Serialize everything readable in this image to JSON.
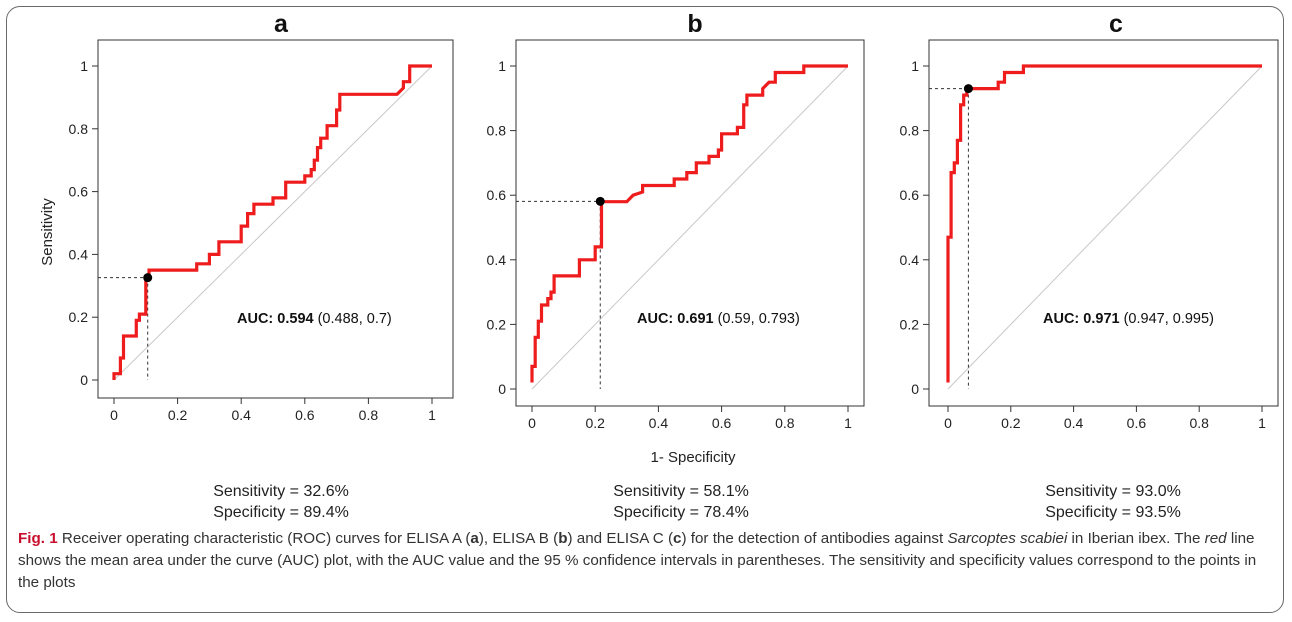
{
  "figure": {
    "shared_xlabel": "1- Specificity",
    "shared_ylabel": "Sensitivity",
    "tick_labels": [
      "0",
      "0.2",
      "0.4",
      "0.6",
      "0.8",
      "1"
    ],
    "colors": {
      "roc_curve": "#ee1c1c",
      "diagonal": "#c8c8c8",
      "guide": "#333333",
      "point": "#000000"
    }
  },
  "chart_data": [
    {
      "type": "line",
      "panel": "a",
      "xlabel": "1- Specificity",
      "ylabel": "Sensitivity",
      "xlim": [
        0,
        1
      ],
      "ylim": [
        0,
        1
      ],
      "auc_label": "AUC:",
      "auc_value": "0.594",
      "auc_ci": "(0.488, 0.7)",
      "point": {
        "x": 0.106,
        "y": 0.326
      },
      "sensitivity_text": "Sensitivity = 32.6%",
      "specificity_text": "Specificity = 89.4%",
      "series": [
        {
          "x": [
            0.0,
            0.0,
            0.02,
            0.02,
            0.03,
            0.03,
            0.04,
            0.04,
            0.07,
            0.07,
            0.08,
            0.08,
            0.1,
            0.1,
            0.11,
            0.11,
            0.13,
            0.13,
            0.16,
            0.16,
            0.26,
            0.26,
            0.3,
            0.3,
            0.33,
            0.33,
            0.4,
            0.4,
            0.42,
            0.42,
            0.44,
            0.44,
            0.5,
            0.5,
            0.54,
            0.54,
            0.6,
            0.6,
            0.62,
            0.62,
            0.63,
            0.63,
            0.64,
            0.64,
            0.65,
            0.65,
            0.67,
            0.67,
            0.7,
            0.7,
            0.71,
            0.71,
            0.89,
            0.91,
            0.91,
            0.93,
            0.93,
            1.0
          ],
          "y": [
            0.0,
            0.02,
            0.02,
            0.07,
            0.07,
            0.14,
            0.14,
            0.14,
            0.14,
            0.19,
            0.19,
            0.21,
            0.21,
            0.33,
            0.33,
            0.35,
            0.35,
            0.35,
            0.35,
            0.35,
            0.35,
            0.37,
            0.37,
            0.4,
            0.4,
            0.44,
            0.44,
            0.49,
            0.49,
            0.53,
            0.53,
            0.56,
            0.56,
            0.58,
            0.58,
            0.63,
            0.63,
            0.65,
            0.65,
            0.67,
            0.67,
            0.7,
            0.7,
            0.74,
            0.74,
            0.77,
            0.77,
            0.81,
            0.81,
            0.86,
            0.86,
            0.91,
            0.91,
            0.93,
            0.95,
            0.95,
            1.0,
            1.0
          ]
        }
      ]
    },
    {
      "type": "line",
      "panel": "b",
      "xlabel": "1- Specificity",
      "ylabel": "Sensitivity",
      "xlim": [
        0,
        1
      ],
      "ylim": [
        0,
        1
      ],
      "auc_label": "AUC:",
      "auc_value": "0.691",
      "auc_ci": "(0.59, 0.793)",
      "point": {
        "x": 0.216,
        "y": 0.581
      },
      "sensitivity_text": "Sensitivity = 58.1%",
      "specificity_text": "Specificity = 78.4%",
      "series": [
        {
          "x": [
            0.0,
            0.0,
            0.01,
            0.01,
            0.02,
            0.02,
            0.03,
            0.03,
            0.05,
            0.05,
            0.06,
            0.06,
            0.07,
            0.07,
            0.15,
            0.15,
            0.2,
            0.2,
            0.22,
            0.22,
            0.3,
            0.32,
            0.35,
            0.35,
            0.45,
            0.45,
            0.49,
            0.49,
            0.52,
            0.52,
            0.56,
            0.56,
            0.59,
            0.59,
            0.6,
            0.6,
            0.65,
            0.65,
            0.67,
            0.67,
            0.68,
            0.68,
            0.73,
            0.73,
            0.75,
            0.77,
            0.77,
            0.79,
            0.79,
            0.86,
            0.86,
            1.0
          ],
          "y": [
            0.02,
            0.07,
            0.07,
            0.16,
            0.16,
            0.21,
            0.21,
            0.26,
            0.26,
            0.28,
            0.28,
            0.3,
            0.3,
            0.35,
            0.35,
            0.4,
            0.4,
            0.44,
            0.44,
            0.58,
            0.58,
            0.6,
            0.61,
            0.63,
            0.63,
            0.65,
            0.65,
            0.67,
            0.67,
            0.7,
            0.7,
            0.72,
            0.72,
            0.74,
            0.74,
            0.79,
            0.79,
            0.81,
            0.81,
            0.88,
            0.88,
            0.91,
            0.91,
            0.93,
            0.95,
            0.95,
            0.98,
            0.98,
            0.98,
            0.98,
            1.0,
            1.0
          ]
        }
      ]
    },
    {
      "type": "line",
      "panel": "c",
      "xlabel": "1- Specificity",
      "ylabel": "Sensitivity",
      "xlim": [
        0,
        1
      ],
      "ylim": [
        0,
        1
      ],
      "auc_label": "AUC:",
      "auc_value": "0.971",
      "auc_ci": "(0.947, 0.995)",
      "point": {
        "x": 0.065,
        "y": 0.93
      },
      "sensitivity_text": "Sensitivity = 93.0%",
      "specificity_text": "Specificity = 93.5%",
      "series": [
        {
          "x": [
            0.0,
            0.0,
            0.01,
            0.01,
            0.02,
            0.02,
            0.03,
            0.03,
            0.04,
            0.04,
            0.05,
            0.05,
            0.06,
            0.06,
            0.07,
            0.07,
            0.16,
            0.16,
            0.18,
            0.18,
            0.2,
            0.2,
            0.24,
            0.24,
            1.0
          ],
          "y": [
            0.02,
            0.47,
            0.47,
            0.67,
            0.67,
            0.7,
            0.7,
            0.77,
            0.77,
            0.88,
            0.88,
            0.91,
            0.91,
            0.93,
            0.93,
            0.93,
            0.93,
            0.95,
            0.95,
            0.98,
            0.98,
            0.98,
            0.98,
            1.0,
            1.0
          ]
        }
      ]
    }
  ],
  "caption": {
    "fig_label": "Fig. 1",
    "part1": " Receiver operating characteristic (ROC) curves for ELISA A (",
    "a": "a",
    "part2": "), ELISA B (",
    "b": "b",
    "part3": ") and ELISA C (",
    "c": "c",
    "part4": ") for the detection of antibodies against ",
    "species": "Sarcoptes scabiei",
    "part5": " in Iberian ibex. The ",
    "red_word": "red",
    "part6": " line shows the mean area under the curve (AUC) plot, with the AUC value and the 95 % confidence intervals in parentheses. The sensitivity and specificity values correspond to the points in the plots"
  }
}
